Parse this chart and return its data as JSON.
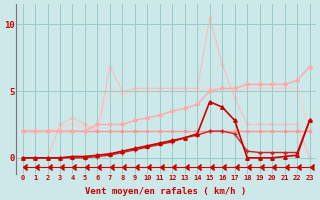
{
  "x": [
    0,
    1,
    2,
    3,
    4,
    5,
    6,
    7,
    8,
    9,
    10,
    11,
    12,
    13,
    14,
    15,
    16,
    17,
    18,
    19,
    20,
    21,
    22,
    23
  ],
  "bg_color": "#cce8e8",
  "grid_color": "#99cccc",
  "xlabel": "Vent moyen/en rafales ( km/h )",
  "xlabel_color": "#cc0000",
  "yticks": [
    0,
    5,
    10
  ],
  "ylim": [
    -1.2,
    11.5
  ],
  "xlim": [
    -0.5,
    23.5
  ],
  "lines": [
    {
      "name": "line_flat_pink",
      "y": [
        2.0,
        2.0,
        2.0,
        2.0,
        2.0,
        2.0,
        2.0,
        2.0,
        2.0,
        2.0,
        2.0,
        2.0,
        2.0,
        2.0,
        2.0,
        2.0,
        2.0,
        2.0,
        2.0,
        2.0,
        2.0,
        2.0,
        2.0,
        2.0
      ],
      "color": "#ff9999",
      "lw": 1.0,
      "marker": "s",
      "ms": 2.0,
      "zorder": 2
    },
    {
      "name": "line_rising_light",
      "y": [
        2.0,
        2.0,
        2.0,
        2.0,
        2.0,
        2.0,
        2.5,
        2.5,
        2.5,
        2.8,
        3.0,
        3.2,
        3.5,
        3.7,
        4.0,
        5.0,
        5.2,
        5.2,
        5.5,
        5.5,
        5.5,
        5.5,
        5.8,
        6.8
      ],
      "color": "#ffaaaa",
      "lw": 1.0,
      "marker": "D",
      "ms": 2.0,
      "zorder": 2
    },
    {
      "name": "line_peak_light",
      "y": [
        0.0,
        0.0,
        0.0,
        2.5,
        3.0,
        2.5,
        2.0,
        6.8,
        5.0,
        5.2,
        5.2,
        5.2,
        5.2,
        5.2,
        5.2,
        10.5,
        7.0,
        4.5,
        2.5,
        2.5,
        2.5,
        2.5,
        2.5,
        0.0
      ],
      "color": "#ffbbbb",
      "lw": 0.8,
      "marker": "D",
      "ms": 1.5,
      "zorder": 1
    },
    {
      "name": "line_rising_medium",
      "y": [
        2.0,
        2.0,
        2.0,
        2.3,
        2.5,
        2.3,
        2.3,
        5.2,
        4.8,
        5.0,
        5.0,
        5.0,
        5.0,
        5.0,
        5.0,
        5.2,
        5.2,
        5.0,
        5.2,
        5.2,
        5.2,
        5.2,
        5.2,
        2.0
      ],
      "color": "#ffcccc",
      "lw": 0.8,
      "marker": "D",
      "ms": 1.5,
      "zorder": 1
    },
    {
      "name": "line_dark_red_rising",
      "y": [
        0.0,
        0.0,
        0.0,
        0.0,
        0.1,
        0.1,
        0.2,
        0.3,
        0.5,
        0.7,
        0.9,
        1.1,
        1.3,
        1.5,
        1.8,
        4.2,
        3.8,
        2.8,
        0.0,
        0.0,
        0.0,
        0.1,
        0.2,
        2.8
      ],
      "color": "#cc0000",
      "lw": 1.2,
      "marker": "^",
      "ms": 2.5,
      "zorder": 4
    },
    {
      "name": "line_dark_med",
      "y": [
        0.0,
        0.0,
        0.0,
        0.0,
        0.0,
        0.0,
        0.1,
        0.2,
        0.4,
        0.6,
        0.8,
        1.0,
        1.2,
        1.5,
        1.7,
        2.0,
        2.0,
        1.8,
        0.5,
        0.4,
        0.4,
        0.4,
        0.4,
        2.8
      ],
      "color": "#cc2222",
      "lw": 1.0,
      "marker": "+",
      "ms": 2.5,
      "zorder": 3
    },
    {
      "name": "line_arrows",
      "y": [
        -0.7,
        -0.7,
        -0.7,
        -0.7,
        -0.7,
        -0.7,
        -0.7,
        -0.7,
        -0.7,
        -0.7,
        -0.7,
        -0.7,
        -0.7,
        -0.7,
        -0.7,
        -0.7,
        -0.7,
        -0.7,
        -0.7,
        -0.7,
        -0.7,
        -0.7,
        -0.7,
        -0.7
      ],
      "color": "#cc0000",
      "lw": 0.8,
      "marker": 4,
      "ms": 4.0,
      "zorder": 5,
      "linestyle": "-"
    }
  ]
}
